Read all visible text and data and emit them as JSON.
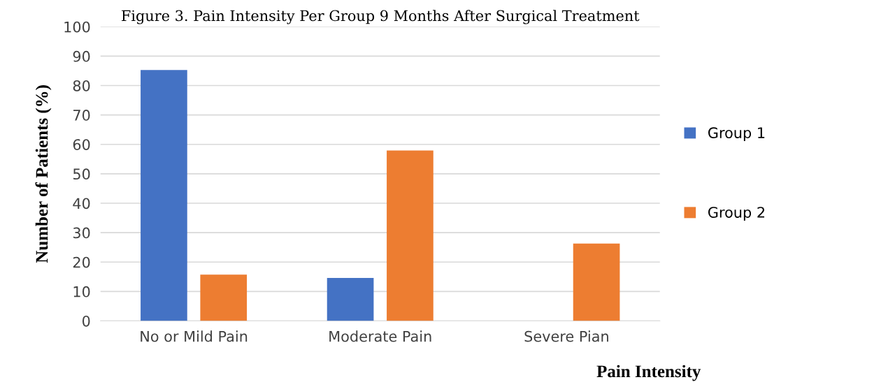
{
  "chart_data": {
    "type": "bar",
    "title": "Figure 3. Pain Intensity Per Group 9 Months After Surgical Treatment",
    "xlabel": "Pain Intensity",
    "ylabel": "Number of Patients (%)",
    "categories": [
      "No or Mild Pain",
      "Moderate Pain",
      "Severe Pian"
    ],
    "series": [
      {
        "name": "Group 1",
        "color": "#4472c4",
        "values": [
          85.3,
          14.6,
          0
        ]
      },
      {
        "name": "Group 2",
        "color": "#ed7d31",
        "values": [
          15.7,
          57.9,
          26.3
        ]
      }
    ],
    "ylim": [
      0,
      100
    ],
    "yticks": [
      0,
      10,
      20,
      30,
      40,
      50,
      60,
      70,
      80,
      90,
      100
    ],
    "grid": "y",
    "legend": "right"
  }
}
